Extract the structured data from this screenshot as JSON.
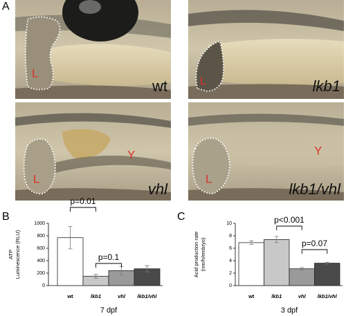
{
  "panels": {
    "A": "A",
    "B": "B",
    "C": "C"
  },
  "photos": [
    {
      "caption": "wt",
      "marks": [
        "L"
      ]
    },
    {
      "caption": "lkb1",
      "marks": [
        "L"
      ]
    },
    {
      "caption": "vhl",
      "marks": [
        "L",
        "Y"
      ]
    },
    {
      "caption": "lkb1/vhl",
      "marks": [
        "L",
        "Y"
      ]
    }
  ],
  "chart_data": [
    {
      "type": "bar",
      "ylabel": [
        "ATP",
        "Luminescence (RLU)"
      ],
      "xlabel": "7 dpf",
      "categories": [
        "wt",
        "lkb1",
        "vhl",
        "lkb1/vhl"
      ],
      "series": [
        {
          "values": [
            770,
            150,
            240,
            270
          ],
          "errors": [
            180,
            30,
            70,
            50
          ],
          "colors": [
            "#ffffff",
            "#c8c8c8",
            "#9a9a9a",
            "#4a4a4a"
          ]
        }
      ],
      "ylim": [
        0,
        1000
      ],
      "yticks": [
        0,
        200,
        400,
        600,
        800,
        1000
      ],
      "annotations": [
        "p=0.01",
        "p=0.1"
      ]
    },
    {
      "type": "bar",
      "ylabel": [
        "Acid production rate",
        "(nm/h/embryo)"
      ],
      "xlabel": "3 dpf",
      "categories": [
        "wt",
        "lkb1",
        "vhl",
        "lkb1/vhl"
      ],
      "series": [
        {
          "values": [
            6.9,
            7.4,
            2.7,
            3.6
          ],
          "errors": [
            0.3,
            0.5,
            0.2,
            0.15
          ],
          "colors": [
            "#ffffff",
            "#c8c8c8",
            "#9a9a9a",
            "#4a4a4a"
          ]
        }
      ],
      "ylim": [
        0,
        10
      ],
      "yticks": [
        0,
        2,
        4,
        6,
        8,
        10
      ],
      "annotations": [
        "p<0.001",
        "p=0.07"
      ]
    }
  ]
}
